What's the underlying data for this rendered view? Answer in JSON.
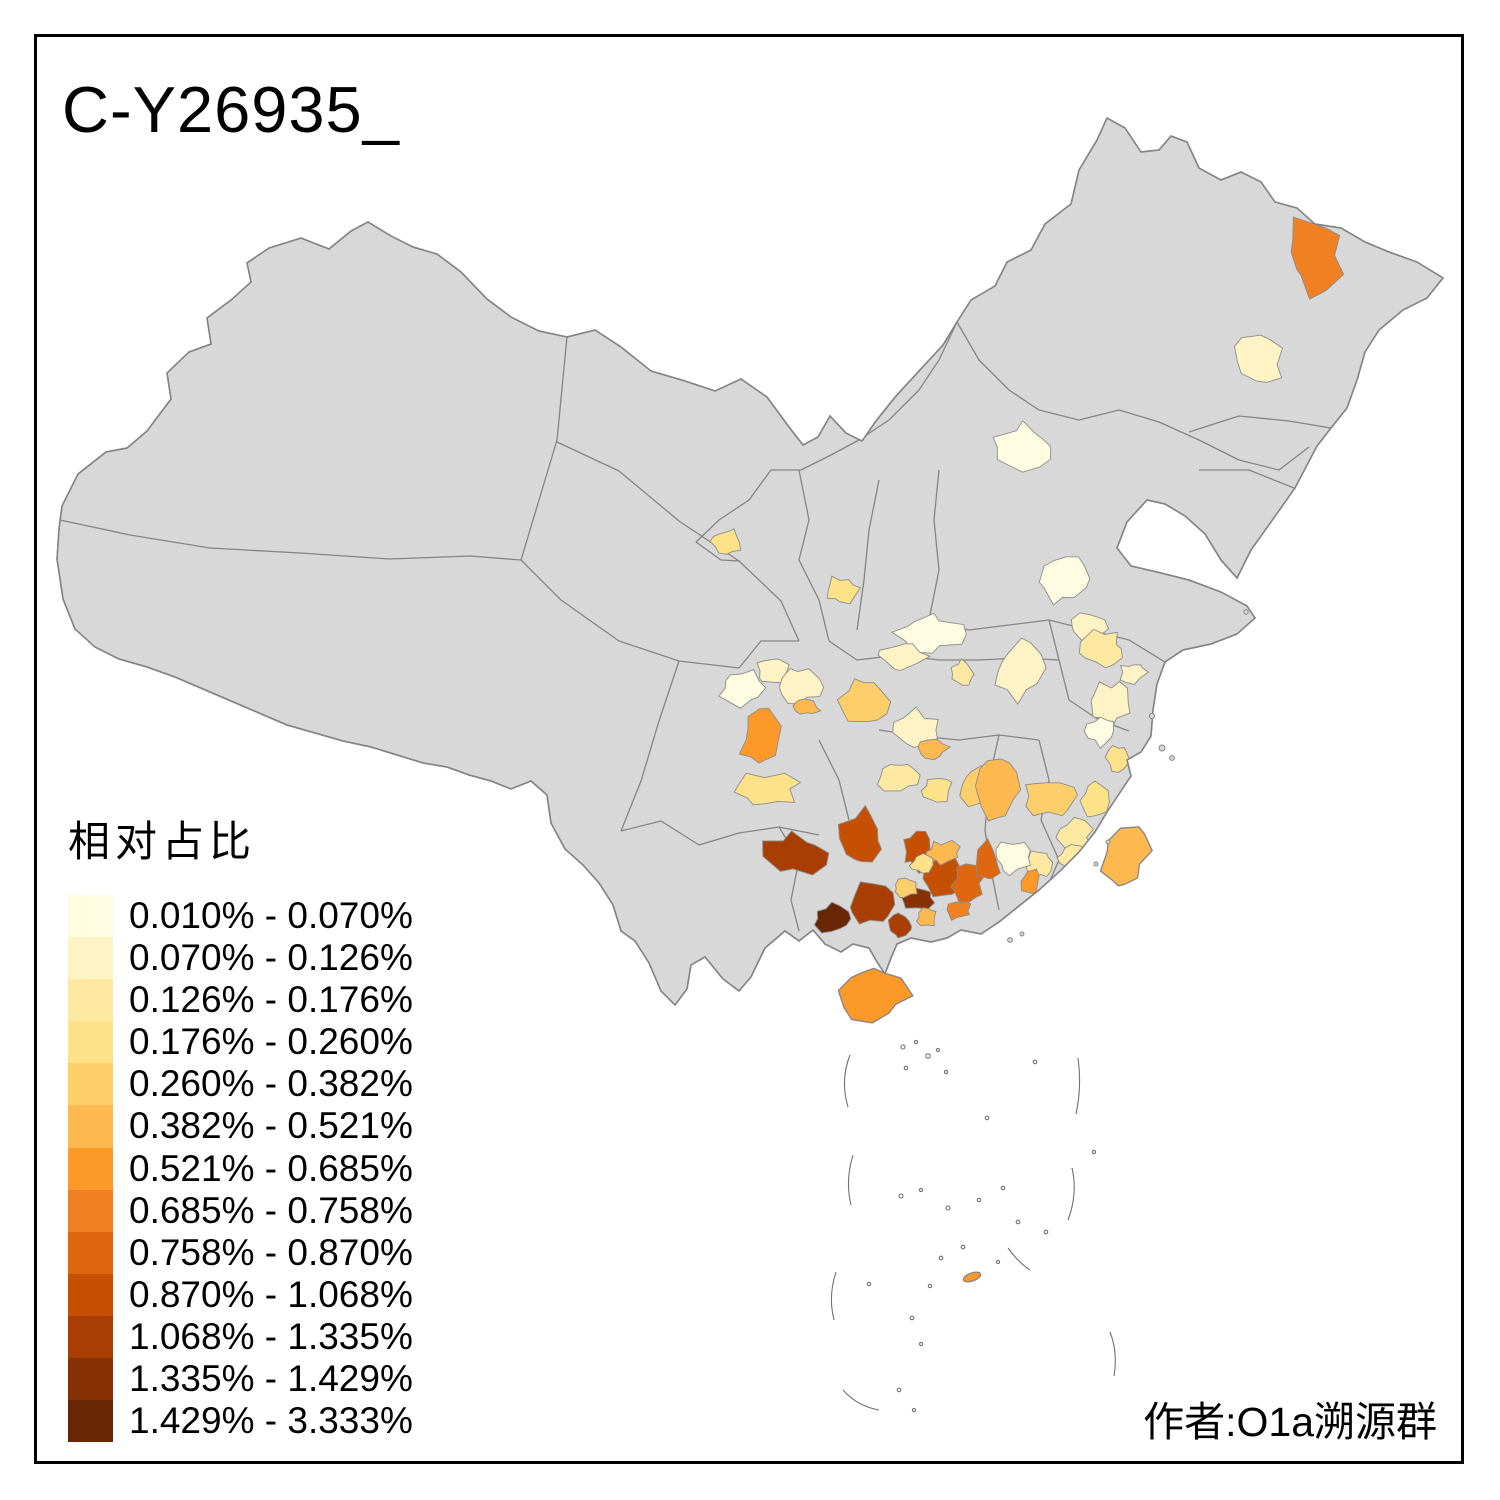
{
  "title": "C-Y26935_",
  "map": {
    "land_color": "#d8d8d8",
    "border_color": "#848484",
    "region_stroke": "#8c8c8c",
    "sea_color": "#ffffff"
  },
  "legend": {
    "title": "相对占比",
    "classes": [
      {
        "label": "0.010% - 0.070%",
        "color": "#FFFCE1"
      },
      {
        "label": "0.070% - 0.126%",
        "color": "#FEF3C4"
      },
      {
        "label": "0.126% - 0.176%",
        "color": "#FEE9A3"
      },
      {
        "label": "0.176% - 0.260%",
        "color": "#FEE289"
      },
      {
        "label": "0.260% - 0.382%",
        "color": "#FDCF6B"
      },
      {
        "label": "0.382% - 0.521%",
        "color": "#FDB94F"
      },
      {
        "label": "0.521% - 0.685%",
        "color": "#FD9928"
      },
      {
        "label": "0.685% - 0.758%",
        "color": "#F08122"
      },
      {
        "label": "0.758% - 0.870%",
        "color": "#DE660F"
      },
      {
        "label": "0.870% - 1.068%",
        "color": "#C54F02"
      },
      {
        "label": "1.068% - 1.335%",
        "color": "#A83E03"
      },
      {
        "label": "1.335% - 1.429%",
        "color": "#863004"
      },
      {
        "label": "1.429% - 3.333%",
        "color": "#692605"
      }
    ]
  },
  "credit": "作者:O1a溯源群"
}
